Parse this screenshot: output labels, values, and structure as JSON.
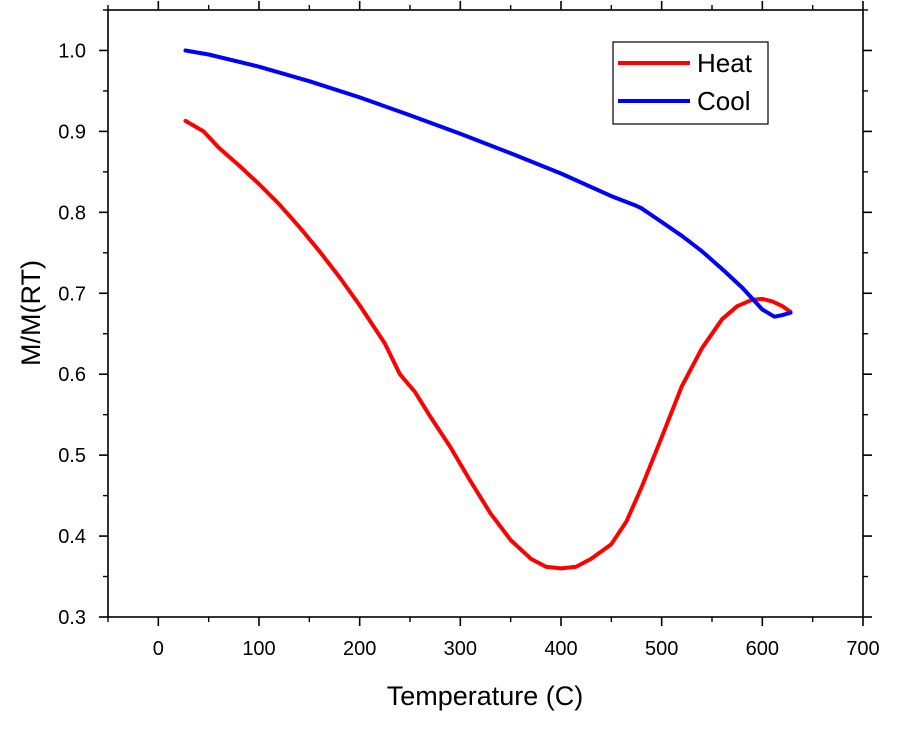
{
  "chart_data": {
    "type": "line",
    "title": "",
    "xlabel": "Temperature (C)",
    "ylabel": "M/M(RT)",
    "xlim": [
      -50,
      700
    ],
    "ylim": [
      0.3,
      1.05
    ],
    "x_ticks": [
      0,
      100,
      200,
      300,
      400,
      500,
      600,
      700
    ],
    "y_ticks": [
      0.3,
      0.4,
      0.5,
      0.6,
      0.7,
      0.8,
      0.9,
      1.0
    ],
    "x_tick_labels": [
      "0",
      "100",
      "200",
      "300",
      "400",
      "500",
      "600",
      "700"
    ],
    "y_tick_labels": [
      "0.3",
      "0.4",
      "0.5",
      "0.6",
      "0.7",
      "0.8",
      "0.9",
      "1.0"
    ],
    "grid": false,
    "legend_position": "top-right",
    "series": [
      {
        "name": "Heat",
        "color": "#ff0000",
        "x": [
          27,
          45,
          60,
          80,
          100,
          120,
          140,
          160,
          180,
          200,
          225,
          240,
          255,
          270,
          290,
          310,
          330,
          350,
          370,
          385,
          400,
          415,
          430,
          450,
          465,
          480,
          500,
          520,
          540,
          560,
          575,
          590,
          600,
          610,
          620,
          628
        ],
        "y": [
          0.913,
          0.9,
          0.88,
          0.858,
          0.835,
          0.81,
          0.782,
          0.752,
          0.72,
          0.685,
          0.638,
          0.6,
          0.578,
          0.548,
          0.51,
          0.468,
          0.428,
          0.395,
          0.372,
          0.362,
          0.36,
          0.362,
          0.372,
          0.39,
          0.418,
          0.46,
          0.522,
          0.585,
          0.632,
          0.668,
          0.684,
          0.692,
          0.693,
          0.69,
          0.684,
          0.677
        ]
      },
      {
        "name": "Cool",
        "color": "#0000ff",
        "x": [
          27,
          50,
          100,
          150,
          200,
          250,
          300,
          350,
          400,
          450,
          475,
          480,
          500,
          520,
          540,
          560,
          580,
          600,
          612,
          620,
          628
        ],
        "y": [
          1.0,
          0.995,
          0.98,
          0.962,
          0.942,
          0.92,
          0.897,
          0.873,
          0.848,
          0.82,
          0.808,
          0.805,
          0.788,
          0.771,
          0.752,
          0.73,
          0.707,
          0.68,
          0.671,
          0.673,
          0.676
        ]
      }
    ]
  }
}
